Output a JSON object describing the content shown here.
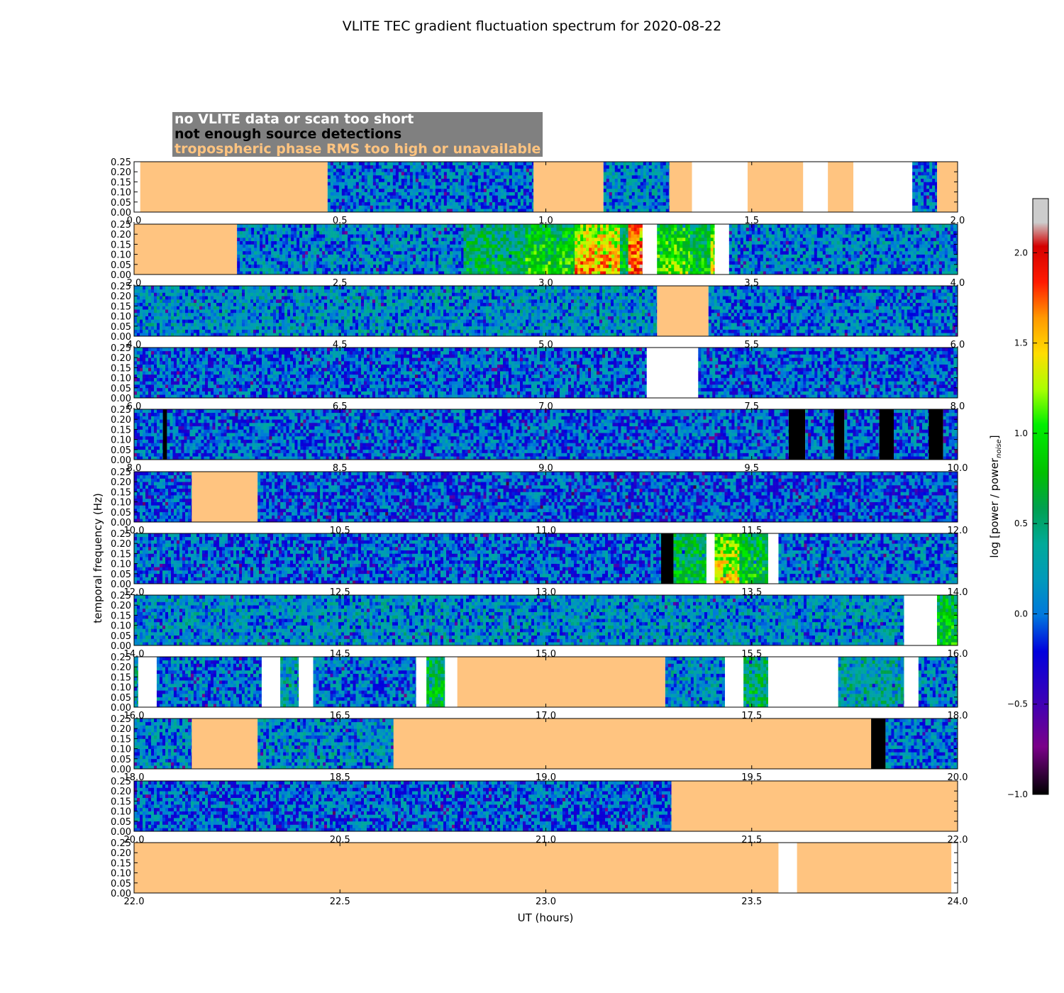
{
  "chart_data": {
    "type": "heatmap",
    "title": "VLITE TEC gradient fluctuation spectrum for 2020-08-22",
    "xlabel": "UT (hours)",
    "ylabel": "temporal frequency (Hz)",
    "ylim": [
      0,
      0.25
    ],
    "ytick_labels": [
      "0.00",
      "0.05",
      "0.10",
      "0.15",
      "0.20",
      "0.25"
    ],
    "colorbar": {
      "label_main": "log [power / power",
      "label_sub": "noise",
      "label_end": "]",
      "range": [
        -1.0,
        2.3
      ],
      "ticks": [
        -1.0,
        -0.5,
        0.0,
        0.5,
        1.0,
        1.5,
        2.0
      ],
      "tick_labels": [
        "−1.0",
        "−0.5",
        "0.0",
        "0.5",
        "1.0",
        "1.5",
        "2.0"
      ],
      "colormap": "nipy_spectral"
    },
    "legend": {
      "no_data": "no VLITE data or scan too short",
      "few_detections": "not enough source detections",
      "tropo": "tropospheric phase RMS too high or unavailable"
    },
    "colors": {
      "no_data": "#ffffff",
      "few_detections": "#000000",
      "tropo": "#ffc480",
      "legend_bg": "#808080"
    },
    "panels": [
      {
        "xlim": [
          0,
          2
        ],
        "xticks": [
          "0.0",
          "0.5",
          "1.0",
          "1.5",
          "2.0"
        ],
        "segments": [
          [
            0.0,
            0.015,
            "nodata"
          ],
          [
            0.015,
            0.47,
            "tropo"
          ],
          [
            0.47,
            0.97,
            "data",
            0.05
          ],
          [
            0.97,
            1.14,
            "tropo"
          ],
          [
            1.14,
            1.3,
            "data",
            0.1
          ],
          [
            1.3,
            1.355,
            "tropo"
          ],
          [
            1.355,
            1.49,
            "nodata"
          ],
          [
            1.49,
            1.625,
            "tropo"
          ],
          [
            1.625,
            1.685,
            "nodata"
          ],
          [
            1.685,
            1.747,
            "tropo"
          ],
          [
            1.747,
            1.89,
            "nodata"
          ],
          [
            1.89,
            1.95,
            "data",
            0.05
          ],
          [
            1.95,
            2.0,
            "tropo"
          ]
        ]
      },
      {
        "xlim": [
          2,
          4
        ],
        "xticks": [
          "2.0",
          "2.5",
          "3.0",
          "3.5",
          "4.0"
        ],
        "segments": [
          [
            2.0,
            2.25,
            "tropo"
          ],
          [
            2.25,
            2.8,
            "data",
            0.1
          ],
          [
            2.8,
            2.95,
            "data",
            0.4
          ],
          [
            2.95,
            3.07,
            "data",
            0.7
          ],
          [
            3.07,
            3.18,
            "data",
            1.2
          ],
          [
            3.18,
            3.2,
            "data",
            0.5
          ],
          [
            3.2,
            3.235,
            "data",
            1.5
          ],
          [
            3.235,
            3.27,
            "nodata"
          ],
          [
            3.27,
            3.35,
            "data",
            0.8
          ],
          [
            3.35,
            3.4,
            "data",
            0.6
          ],
          [
            3.4,
            3.41,
            "data",
            1.0
          ],
          [
            3.41,
            3.445,
            "nodata"
          ],
          [
            3.445,
            4.0,
            "data",
            0.1
          ]
        ]
      },
      {
        "xlim": [
          4,
          6
        ],
        "xticks": [
          "4.0",
          "4.5",
          "5.0",
          "5.5",
          "6.0"
        ],
        "segments": [
          [
            4.0,
            5.27,
            "data",
            0.15
          ],
          [
            5.27,
            5.395,
            "tropo"
          ],
          [
            5.395,
            6.0,
            "data",
            0.05
          ]
        ]
      },
      {
        "xlim": [
          6,
          8
        ],
        "xticks": [
          "6.0",
          "6.5",
          "7.0",
          "7.5",
          "8.0"
        ],
        "segments": [
          [
            6.0,
            7.245,
            "data",
            0.0
          ],
          [
            7.245,
            7.37,
            "nodata"
          ],
          [
            7.37,
            8.0,
            "data",
            0.0
          ]
        ]
      },
      {
        "xlim": [
          8,
          10
        ],
        "xticks": [
          "8.0",
          "8.5",
          "9.0",
          "9.5",
          "10.0"
        ],
        "segments": [
          [
            8.0,
            8.07,
            "data",
            0.0
          ],
          [
            8.07,
            8.08,
            "nodet"
          ],
          [
            8.08,
            9.59,
            "data",
            0.0
          ],
          [
            9.59,
            9.63,
            "nodet"
          ],
          [
            9.63,
            9.7,
            "data",
            0.0
          ],
          [
            9.7,
            9.725,
            "nodet"
          ],
          [
            9.725,
            9.81,
            "data",
            0.0
          ],
          [
            9.81,
            9.845,
            "nodet"
          ],
          [
            9.845,
            9.93,
            "data",
            0.0
          ],
          [
            9.93,
            9.965,
            "nodet"
          ],
          [
            9.965,
            10.0,
            "data",
            0.0
          ]
        ]
      },
      {
        "xlim": [
          10,
          12
        ],
        "xticks": [
          "10.0",
          "10.5",
          "11.0",
          "11.5",
          "12.0"
        ],
        "segments": [
          [
            10.0,
            10.14,
            "data",
            -0.05
          ],
          [
            10.14,
            10.3,
            "tropo"
          ],
          [
            10.3,
            10.66,
            "data",
            -0.05
          ],
          [
            10.66,
            10.69,
            "data",
            -0.1
          ],
          [
            10.69,
            12.0,
            "data",
            -0.05
          ]
        ]
      },
      {
        "xlim": [
          12,
          14
        ],
        "xticks": [
          "12.0",
          "12.5",
          "13.0",
          "13.5",
          "14.0"
        ],
        "segments": [
          [
            12.0,
            13.28,
            "data",
            0.0
          ],
          [
            13.28,
            13.31,
            "nodet"
          ],
          [
            13.31,
            13.39,
            "data",
            0.5
          ],
          [
            13.39,
            13.41,
            "nodata"
          ],
          [
            13.41,
            13.47,
            "data",
            1.0
          ],
          [
            13.47,
            13.54,
            "data",
            0.6
          ],
          [
            13.54,
            13.565,
            "nodata"
          ],
          [
            13.565,
            14.0,
            "data",
            0.05
          ]
        ]
      },
      {
        "xlim": [
          14,
          16
        ],
        "xticks": [
          "14.0",
          "14.5",
          "15.0",
          "15.5",
          "16.0"
        ],
        "segments": [
          [
            14.0,
            15.87,
            "data",
            0.15
          ],
          [
            15.87,
            15.95,
            "nodata"
          ],
          [
            15.95,
            16.0,
            "data",
            0.6
          ]
        ]
      },
      {
        "xlim": [
          16,
          18
        ],
        "xticks": [
          "16.0",
          "16.5",
          "17.0",
          "17.5",
          "18.0"
        ],
        "segments": [
          [
            16.0,
            16.01,
            "data",
            0.3
          ],
          [
            16.01,
            16.055,
            "nodata"
          ],
          [
            16.055,
            16.31,
            "data",
            0.05
          ],
          [
            16.31,
            16.355,
            "nodata"
          ],
          [
            16.355,
            16.4,
            "data",
            0.3
          ],
          [
            16.4,
            16.435,
            "nodata"
          ],
          [
            16.435,
            16.685,
            "data",
            0.05
          ],
          [
            16.685,
            16.71,
            "nodata"
          ],
          [
            16.71,
            16.755,
            "data",
            0.5
          ],
          [
            16.755,
            16.785,
            "nodata"
          ],
          [
            16.785,
            17.29,
            "tropo"
          ],
          [
            17.29,
            17.435,
            "data",
            0.15
          ],
          [
            17.435,
            17.48,
            "nodata"
          ],
          [
            17.48,
            17.54,
            "data",
            0.4
          ],
          [
            17.54,
            17.71,
            "nodata"
          ],
          [
            17.71,
            17.87,
            "data",
            0.3
          ],
          [
            17.87,
            17.905,
            "nodata"
          ],
          [
            17.905,
            18.0,
            "data",
            0.1
          ]
        ]
      },
      {
        "xlim": [
          18,
          20
        ],
        "xticks": [
          "18.0",
          "18.5",
          "19.0",
          "19.5",
          "20.0"
        ],
        "segments": [
          [
            18.0,
            18.14,
            "data",
            0.1
          ],
          [
            18.14,
            18.3,
            "tropo"
          ],
          [
            18.3,
            18.63,
            "data",
            0.15
          ],
          [
            18.63,
            19.79,
            "tropo"
          ],
          [
            19.79,
            19.825,
            "nodet"
          ],
          [
            19.825,
            20.0,
            "data",
            0.05
          ]
        ]
      },
      {
        "xlim": [
          20,
          22
        ],
        "xticks": [
          "20.0",
          "20.5",
          "21.0",
          "21.5",
          "22.0"
        ],
        "segments": [
          [
            20.0,
            21.305,
            "data",
            0.0
          ],
          [
            21.305,
            22.0,
            "tropo"
          ]
        ]
      },
      {
        "xlim": [
          22,
          24
        ],
        "xticks": [
          "22.0",
          "22.5",
          "23.0",
          "23.5",
          "24.0"
        ],
        "segments": [
          [
            22.0,
            23.565,
            "tropo"
          ],
          [
            23.565,
            23.61,
            "nodata"
          ],
          [
            23.61,
            23.985,
            "tropo"
          ],
          [
            23.985,
            24.0,
            "nodata"
          ]
        ]
      }
    ]
  }
}
